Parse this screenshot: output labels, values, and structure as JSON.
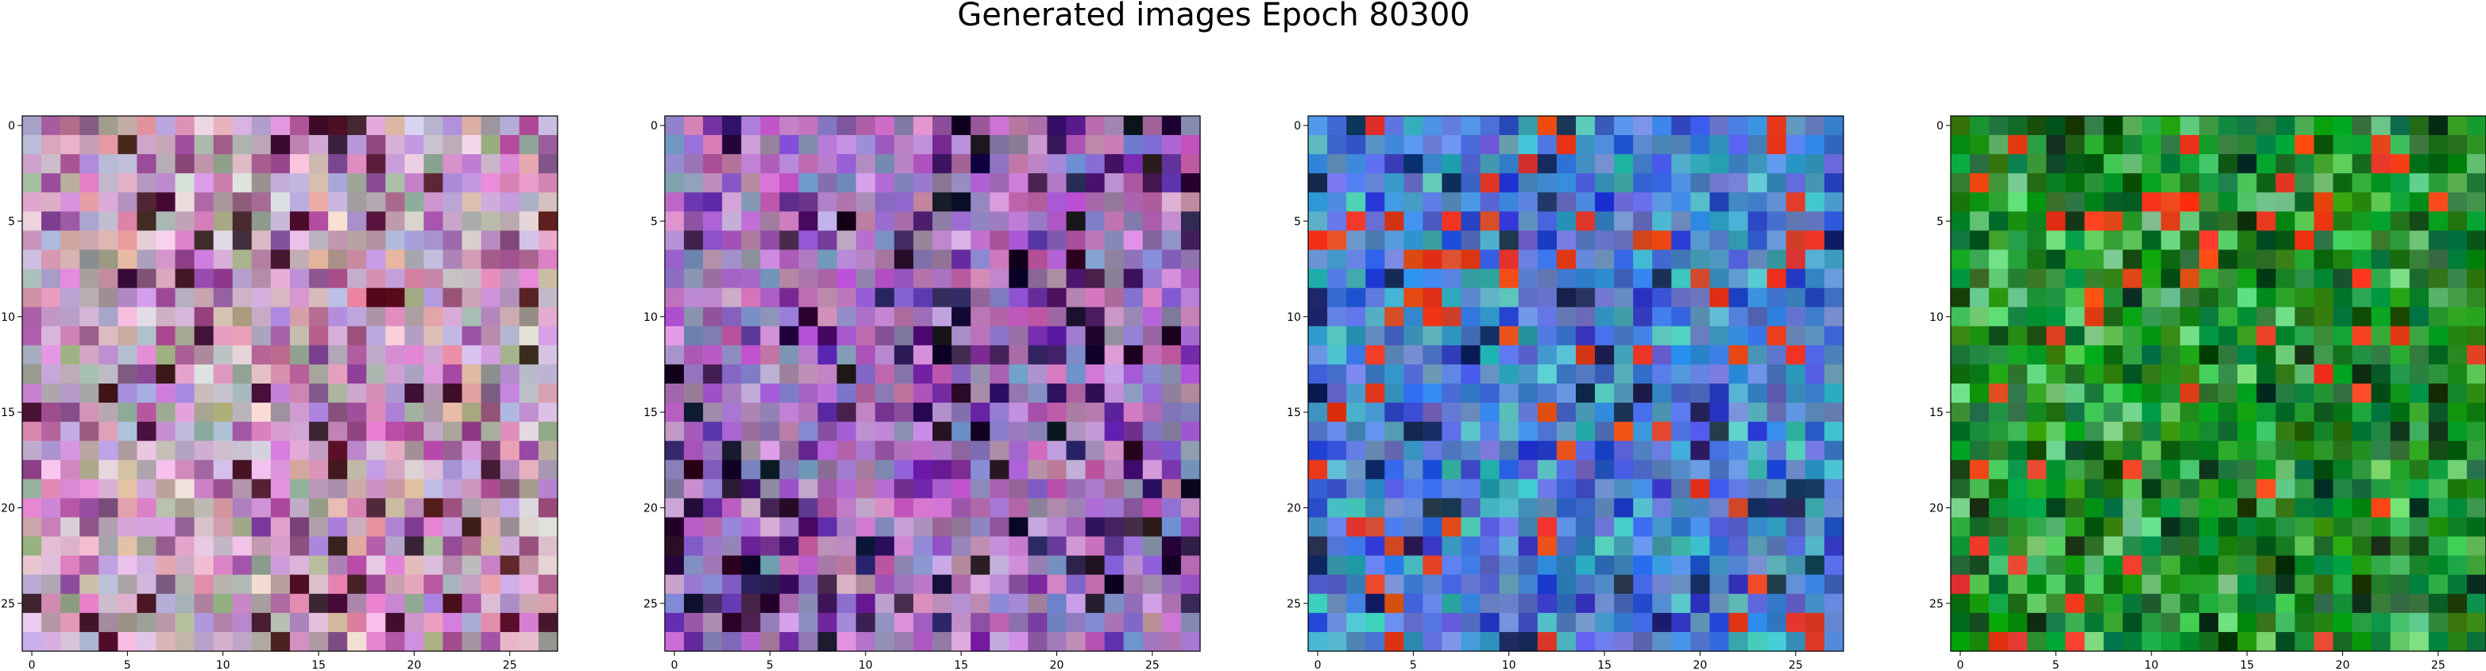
{
  "figure": {
    "title": "Generated images Epoch 80300"
  },
  "chart_data": [
    {
      "type": "heatmap",
      "x": [
        0,
        5,
        10,
        15,
        20,
        25
      ],
      "y": [
        0,
        5,
        10,
        15,
        20,
        25
      ],
      "xlim": [
        -0.5,
        27.5
      ],
      "ylim": [
        27.5,
        -0.5
      ],
      "grid_size": 28,
      "dominant_color": "#c8a0c0",
      "accent_colors": [
        "#a85a9c",
        "#d0b0d8",
        "#8c4a8a",
        "#e8d0e0",
        "#4a1a2a",
        "#9ca090"
      ],
      "grid": false
    },
    {
      "type": "heatmap",
      "x": [
        0,
        5,
        10,
        15,
        20,
        25
      ],
      "y": [
        0,
        5,
        10,
        15,
        20,
        25
      ],
      "xlim": [
        -0.5,
        27.5
      ],
      "ylim": [
        27.5,
        -0.5
      ],
      "grid_size": 28,
      "dominant_color": "#a070b8",
      "accent_colors": [
        "#6a2aa0",
        "#c880c8",
        "#3a1a5a",
        "#8090c0",
        "#d0a0d8",
        "#1a0a2a"
      ],
      "grid": false
    },
    {
      "type": "heatmap",
      "x": [
        0,
        5,
        10,
        15,
        20,
        25
      ],
      "y": [
        0,
        5,
        10,
        15,
        20,
        25
      ],
      "xlim": [
        -0.5,
        27.5
      ],
      "ylim": [
        27.5,
        -0.5
      ],
      "grid_size": 28,
      "dominant_color": "#4a7ad0",
      "accent_colors": [
        "#2a40c8",
        "#30a0b0",
        "#6a8ae0",
        "#1a2a5a",
        "#50c0c8",
        "#e04020"
      ],
      "grid": false
    },
    {
      "type": "heatmap",
      "x": [
        0,
        5,
        10,
        15,
        20,
        25
      ],
      "y": [
        0,
        5,
        10,
        15,
        20,
        25
      ],
      "xlim": [
        -0.5,
        27.5
      ],
      "ylim": [
        27.5,
        -0.5
      ],
      "grid_size": 28,
      "dominant_color": "#1a8a2a",
      "accent_colors": [
        "#0a5a1a",
        "#30a040",
        "#50c060",
        "#0a3a10",
        "#70d080",
        "#f04020"
      ],
      "grid": false
    }
  ]
}
